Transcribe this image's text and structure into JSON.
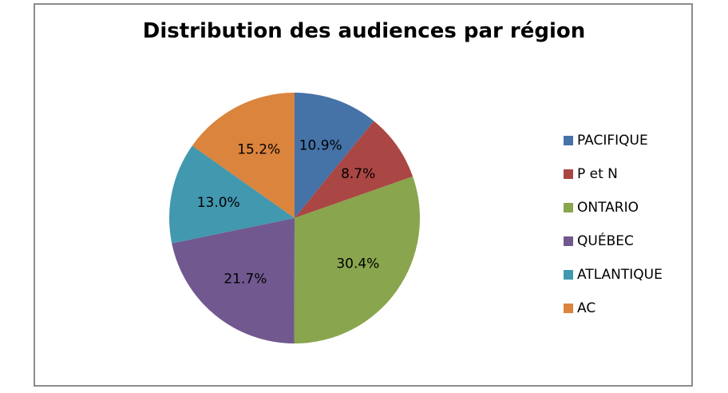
{
  "chart_data": {
    "type": "pie",
    "title": "Distribution des audiences par région",
    "categories": [
      "PACIFIQUE",
      "P et N",
      "ONTARIO",
      "QUÉBEC",
      "ATLANTIQUE",
      "AC"
    ],
    "values": [
      10.9,
      8.7,
      30.4,
      21.7,
      13.0,
      15.2
    ],
    "labels": [
      "10.9%",
      "8.7%",
      "30.4%",
      "21.7%",
      "13.0%",
      "15.2%"
    ],
    "colors": [
      "#4572a7",
      "#aa4643",
      "#89a54e",
      "#71588f",
      "#4198af",
      "#db843d"
    ],
    "legend_position": "right",
    "start_angle_deg": 0,
    "direction": "clockwise"
  },
  "legend": {
    "items": [
      {
        "label": "PACIFIQUE",
        "color": "#4572a7"
      },
      {
        "label": "P et N",
        "color": "#aa4643"
      },
      {
        "label": "ONTARIO",
        "color": "#89a54e"
      },
      {
        "label": "QUÉBEC",
        "color": "#71588f"
      },
      {
        "label": "ATLANTIQUE",
        "color": "#4198af"
      },
      {
        "label": "AC",
        "color": "#db843d"
      }
    ]
  }
}
